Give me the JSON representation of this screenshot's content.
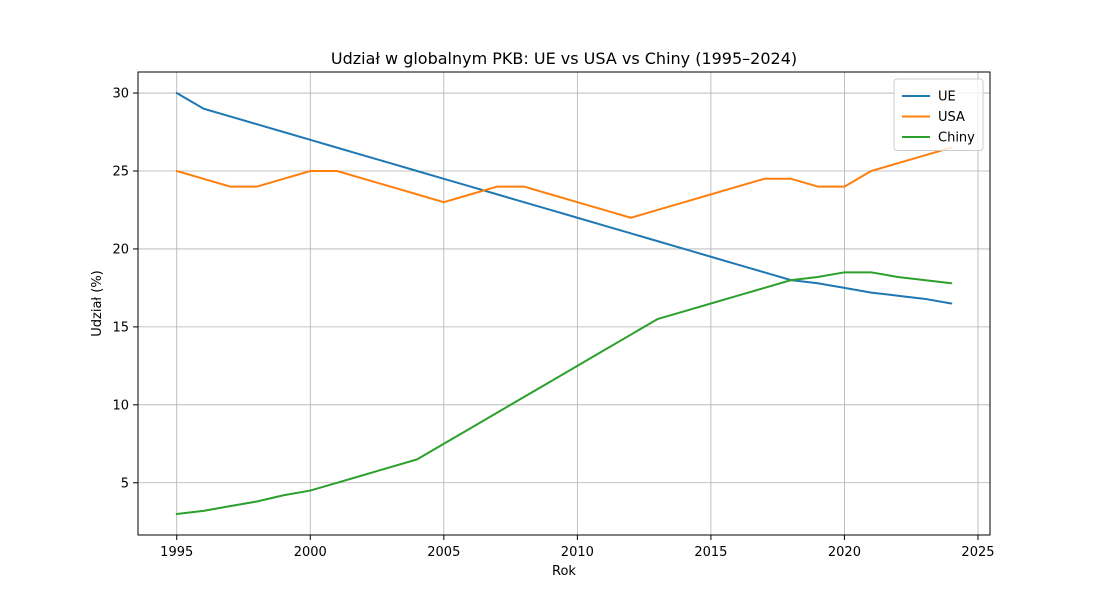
{
  "chart_data": {
    "type": "line",
    "title": "Udział w globalnym PKB: UE vs USA vs Chiny (1995–2024)",
    "xlabel": "Rok",
    "ylabel": "Udział (%)",
    "xlim": [
      1993.55,
      2025.45
    ],
    "ylim": [
      1.65,
      31.35
    ],
    "grid": true,
    "legend_position": "top-right",
    "x_ticks": [
      1995,
      2000,
      2005,
      2010,
      2015,
      2020,
      2025
    ],
    "y_ticks": [
      5,
      10,
      15,
      20,
      25,
      30
    ],
    "x": [
      1995,
      1996,
      1997,
      1998,
      1999,
      2000,
      2001,
      2002,
      2003,
      2004,
      2005,
      2006,
      2007,
      2008,
      2009,
      2010,
      2011,
      2012,
      2013,
      2014,
      2015,
      2016,
      2017,
      2018,
      2019,
      2020,
      2021,
      2022,
      2023,
      2024
    ],
    "series": [
      {
        "name": "UE",
        "color": "#1f77b4",
        "values": [
          30.0,
          29.0,
          28.5,
          28.0,
          27.5,
          27.0,
          26.5,
          26.0,
          25.5,
          25.0,
          24.5,
          24.0,
          23.5,
          23.0,
          22.5,
          22.0,
          21.5,
          21.0,
          20.5,
          20.0,
          19.5,
          19.0,
          18.5,
          18.0,
          17.8,
          17.5,
          17.2,
          17.0,
          16.8,
          16.5
        ]
      },
      {
        "name": "USA",
        "color": "#ff7f0e",
        "values": [
          25.0,
          24.5,
          24.0,
          24.0,
          24.5,
          25.0,
          25.0,
          24.5,
          24.0,
          23.5,
          23.0,
          23.5,
          24.0,
          24.0,
          23.5,
          23.0,
          22.5,
          22.0,
          22.5,
          23.0,
          23.5,
          24.0,
          24.5,
          24.5,
          24.0,
          24.0,
          25.0,
          25.5,
          26.0,
          26.5
        ]
      },
      {
        "name": "Chiny",
        "color": "#2ca02c",
        "values": [
          3.0,
          3.2,
          3.5,
          3.8,
          4.2,
          4.5,
          5.0,
          5.5,
          6.0,
          6.5,
          7.5,
          8.5,
          9.5,
          10.5,
          11.5,
          12.5,
          13.5,
          14.5,
          15.5,
          16.0,
          16.5,
          17.0,
          17.5,
          18.0,
          18.2,
          18.5,
          18.5,
          18.2,
          18.0,
          17.8
        ]
      }
    ]
  }
}
